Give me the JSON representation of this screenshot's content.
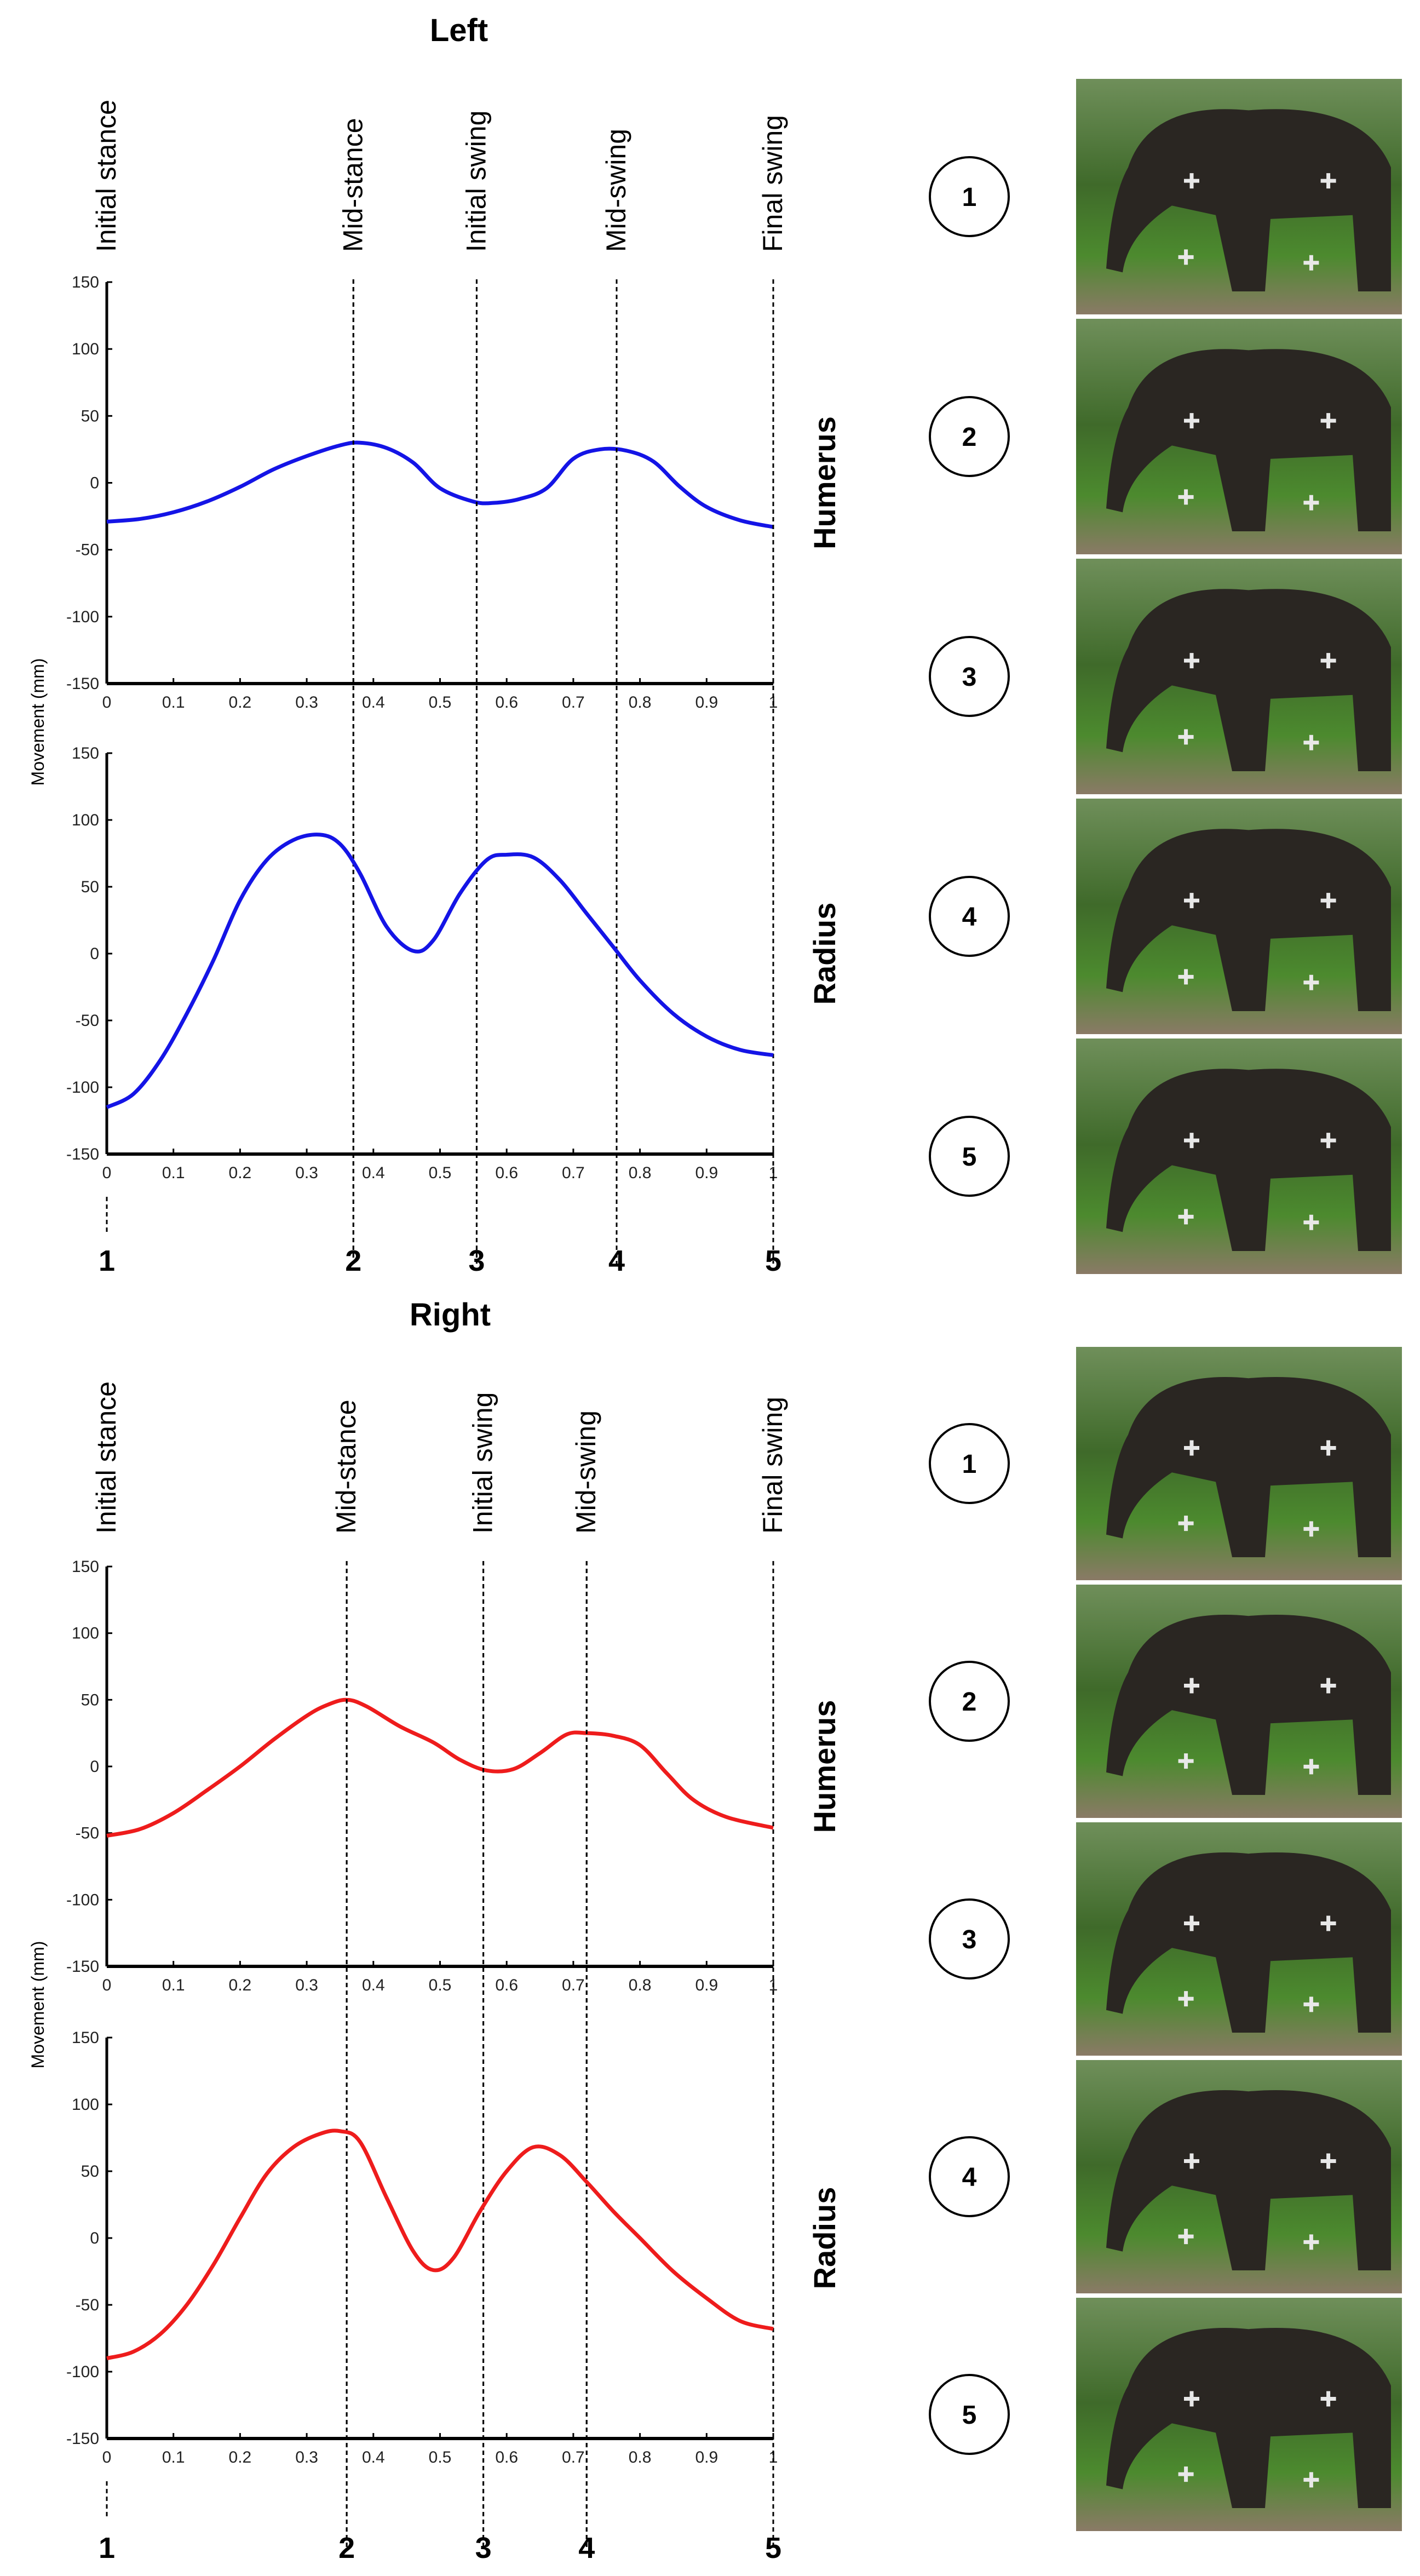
{
  "figure": {
    "panels": [
      {
        "title": "Left",
        "phases": [
          "Initial stance",
          "Mid-stance",
          "Initial swing",
          "Mid-swing",
          "Final swing"
        ],
        "frame_numbers": [
          "1",
          "2",
          "3",
          "4",
          "5"
        ],
        "circle_labels": [
          "1",
          "2",
          "3",
          "4",
          "5"
        ],
        "photos": [
          "elephant-walking-frame-1",
          "elephant-walking-frame-2",
          "elephant-walking-frame-3",
          "elephant-walking-frame-4",
          "elephant-walking-frame-5"
        ],
        "color": "#1414e6"
      },
      {
        "title": "Right",
        "phases": [
          "Initial stance",
          "Mid-stance",
          "Initial swing",
          "Mid-swing",
          "Final swing"
        ],
        "frame_numbers": [
          "1",
          "2",
          "3",
          "4",
          "5"
        ],
        "circle_labels": [
          "1",
          "2",
          "3",
          "4",
          "5"
        ],
        "photos": [
          "elephant-walking-frame-1",
          "elephant-walking-frame-2",
          "elephant-walking-frame-3",
          "elephant-walking-frame-4",
          "elephant-walking-frame-5"
        ],
        "color": "#ee1c1c"
      }
    ]
  },
  "chart_data": [
    {
      "type": "line",
      "panel": "Left",
      "row_label": "Humerus",
      "xlabel": "",
      "ylabel": "Movement (mm)",
      "xlim": [
        0,
        1
      ],
      "ylim": [
        -150,
        150
      ],
      "xticks": [
        "0",
        "0.1",
        "0.2",
        "0.3",
        "0.4",
        "0.5",
        "0.6",
        "0.7",
        "0.8",
        "0.9",
        "1"
      ],
      "yticks": [
        "150",
        "100",
        "50",
        "0",
        "-50",
        "-100",
        "-150"
      ],
      "phase_markers_x": [
        0.37,
        0.555,
        0.765,
        1.0
      ],
      "series": [
        {
          "color": "#1414e6",
          "x": [
            0,
            0.05,
            0.1,
            0.15,
            0.2,
            0.25,
            0.3,
            0.35,
            0.38,
            0.42,
            0.46,
            0.5,
            0.55,
            0.58,
            0.62,
            0.66,
            0.7,
            0.74,
            0.78,
            0.82,
            0.86,
            0.9,
            0.95,
            1.0
          ],
          "y": [
            -29,
            -27,
            -22,
            -14,
            -3,
            10,
            20,
            28,
            30,
            26,
            15,
            -4,
            -14,
            -15,
            -12,
            -4,
            18,
            25,
            24,
            16,
            -3,
            -18,
            -28,
            -33
          ]
        }
      ]
    },
    {
      "type": "line",
      "panel": "Left",
      "row_label": "Radius",
      "xlabel": "",
      "ylabel": "Movement (mm)",
      "xlim": [
        0,
        1
      ],
      "ylim": [
        -150,
        150
      ],
      "xticks": [
        "0",
        "0.1",
        "0.2",
        "0.3",
        "0.4",
        "0.5",
        "0.6",
        "0.7",
        "0.8",
        "0.9",
        "1"
      ],
      "yticks": [
        "150",
        "100",
        "50",
        "0",
        "-50",
        "-100",
        "-150"
      ],
      "phase_markers_x": [
        0.37,
        0.555,
        0.765,
        1.0
      ],
      "series": [
        {
          "color": "#1414e6",
          "x": [
            0,
            0.04,
            0.08,
            0.12,
            0.16,
            0.2,
            0.24,
            0.28,
            0.32,
            0.35,
            0.38,
            0.42,
            0.46,
            0.49,
            0.53,
            0.57,
            0.6,
            0.64,
            0.68,
            0.72,
            0.76,
            0.8,
            0.85,
            0.9,
            0.95,
            1.0
          ],
          "y": [
            -115,
            -105,
            -80,
            -45,
            -5,
            40,
            70,
            85,
            89,
            82,
            60,
            20,
            2,
            10,
            45,
            70,
            74,
            72,
            55,
            30,
            5,
            -20,
            -45,
            -62,
            -72,
            -76
          ]
        }
      ]
    },
    {
      "type": "line",
      "panel": "Right",
      "row_label": "Humerus",
      "xlabel": "",
      "ylabel": "Movement (mm)",
      "xlim": [
        0,
        1
      ],
      "ylim": [
        -150,
        150
      ],
      "xticks": [
        "0",
        "0.1",
        "0.2",
        "0.3",
        "0.4",
        "0.5",
        "0.6",
        "0.7",
        "0.8",
        "0.9",
        "1"
      ],
      "yticks": [
        "150",
        "100",
        "50",
        "0",
        "-50",
        "-100",
        "-150"
      ],
      "phase_markers_x": [
        0.36,
        0.565,
        0.72,
        1.0
      ],
      "series": [
        {
          "color": "#ee1c1c",
          "x": [
            0,
            0.05,
            0.1,
            0.15,
            0.2,
            0.25,
            0.3,
            0.33,
            0.36,
            0.39,
            0.44,
            0.49,
            0.53,
            0.57,
            0.61,
            0.65,
            0.69,
            0.72,
            0.76,
            0.8,
            0.84,
            0.88,
            0.93,
            1.0
          ],
          "y": [
            -52,
            -47,
            -35,
            -18,
            0,
            20,
            38,
            46,
            50,
            45,
            30,
            18,
            5,
            -3,
            -2,
            10,
            24,
            25,
            23,
            16,
            -5,
            -25,
            -38,
            -46
          ]
        }
      ]
    },
    {
      "type": "line",
      "panel": "Right",
      "row_label": "Radius",
      "xlabel": "",
      "ylabel": "Movement (mm)",
      "xlim": [
        0,
        1
      ],
      "ylim": [
        -150,
        150
      ],
      "xticks": [
        "0",
        "0.1",
        "0.2",
        "0.3",
        "0.4",
        "0.5",
        "0.6",
        "0.7",
        "0.8",
        "0.9",
        "1"
      ],
      "yticks": [
        "150",
        "100",
        "50",
        "0",
        "-50",
        "-100",
        "-150"
      ],
      "phase_markers_x": [
        0.36,
        0.565,
        0.72,
        1.0
      ],
      "series": [
        {
          "color": "#ee1c1c",
          "x": [
            0,
            0.04,
            0.08,
            0.12,
            0.16,
            0.2,
            0.24,
            0.28,
            0.32,
            0.35,
            0.38,
            0.42,
            0.46,
            0.49,
            0.52,
            0.56,
            0.6,
            0.64,
            0.68,
            0.72,
            0.76,
            0.8,
            0.85,
            0.9,
            0.95,
            1.0
          ],
          "y": [
            -90,
            -85,
            -72,
            -50,
            -20,
            15,
            48,
            68,
            78,
            80,
            72,
            30,
            -10,
            -24,
            -15,
            20,
            50,
            68,
            62,
            42,
            20,
            0,
            -25,
            -45,
            -62,
            -68
          ]
        }
      ]
    }
  ]
}
